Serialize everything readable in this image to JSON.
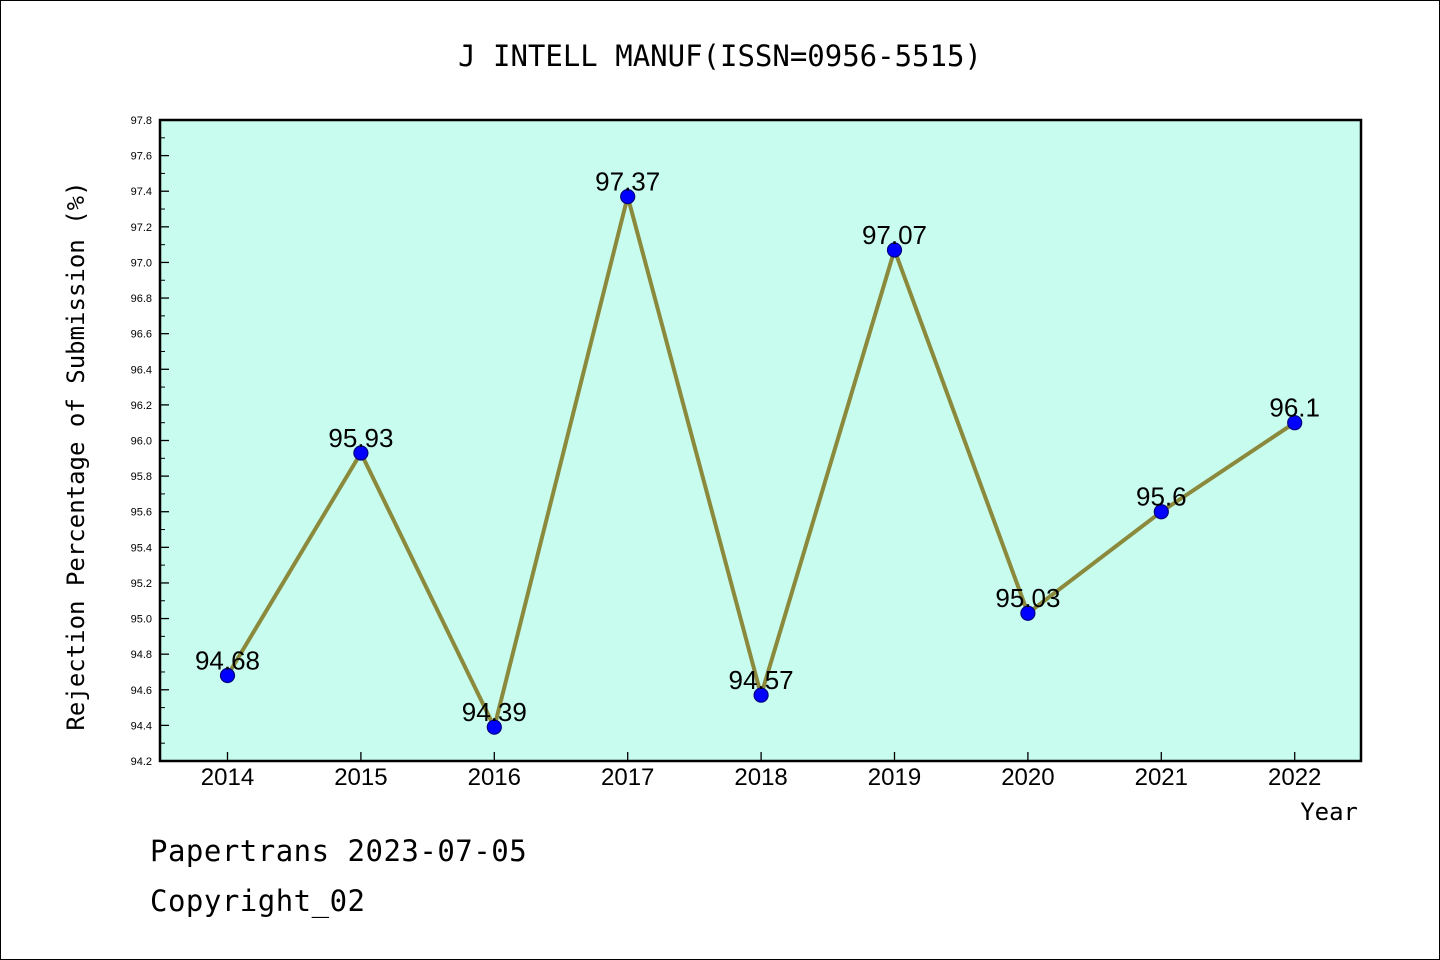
{
  "chart_data": {
    "type": "line",
    "title": "J INTELL MANUF(ISSN=0956-5515)",
    "xlabel": "Year",
    "ylabel": "Rejection Percentage of Submission (%)",
    "categories": [
      "2014",
      "2015",
      "2016",
      "2017",
      "2018",
      "2019",
      "2020",
      "2021",
      "2022"
    ],
    "series": [
      {
        "values": [
          94.68,
          95.93,
          94.39,
          97.37,
          94.57,
          97.07,
          95.03,
          95.6,
          96.1
        ]
      }
    ],
    "data_labels": [
      "94.68",
      "95.93",
      "94.39",
      "97.37",
      "94.57",
      "97.07",
      "95.03",
      "95.6",
      "96.1"
    ],
    "ylim": [
      94.2,
      97.8
    ],
    "y_ticks": [
      "94.2",
      "94.4",
      "94.6",
      "94.8",
      "95.0",
      "95.2",
      "95.4",
      "95.6",
      "95.8",
      "96.0",
      "96.2",
      "96.4",
      "96.6",
      "96.8",
      "97.0",
      "97.2",
      "97.4",
      "97.6",
      "97.8"
    ],
    "grid": false,
    "colors": {
      "plot_background": "#c8fcee",
      "line": "#8b8a3c",
      "marker": "#0000ff",
      "marker_edge": "#000080"
    }
  },
  "footer": {
    "line1": "Papertrans 2023-07-05",
    "line2": "Copyright_02"
  }
}
